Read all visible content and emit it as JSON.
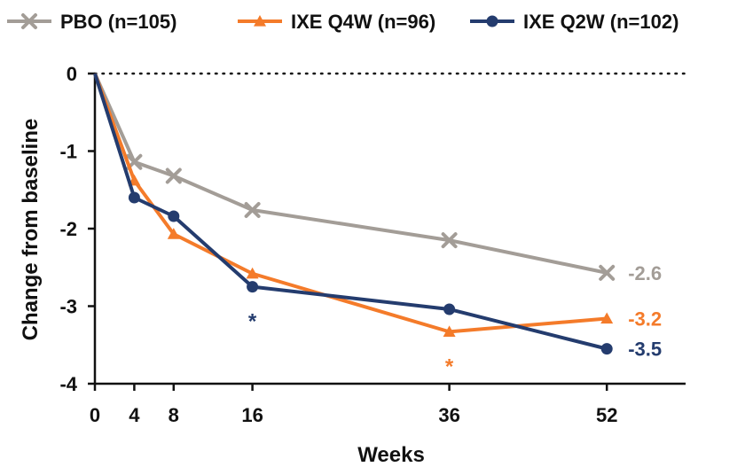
{
  "chart_data": {
    "type": "line",
    "xlabel": "Weeks",
    "ylabel": "Change from baseline",
    "x": [
      0,
      4,
      8,
      16,
      36,
      52
    ],
    "xticks": [
      "0",
      "4",
      "8",
      "16",
      "36",
      "52"
    ],
    "yticks": [
      "0",
      "-1",
      "-2",
      "-3",
      "-4"
    ],
    "xlim": [
      0,
      60
    ],
    "ylim": [
      -4,
      0
    ],
    "reference_line": 0,
    "legend_position": "top",
    "series": [
      {
        "name": "PBO (n=105)",
        "color": "#a39d97",
        "marker": "cross",
        "values": [
          0,
          -1.14,
          -1.32,
          -1.76,
          -2.15,
          -2.57
        ],
        "end_label": "-2.6",
        "significant_at": []
      },
      {
        "name": "IXE Q4W (n=96)",
        "color": "#f47b2a",
        "marker": "triangle",
        "values": [
          0,
          -1.38,
          -2.07,
          -2.58,
          -3.33,
          -3.16
        ],
        "end_label": "-3.2",
        "significant_at": [
          36
        ]
      },
      {
        "name": "IXE Q2W (n=102)",
        "color": "#243c6e",
        "marker": "circle",
        "values": [
          0,
          -1.6,
          -1.84,
          -2.75,
          -3.04,
          -3.55
        ],
        "end_label": "-3.5",
        "significant_at": [
          16
        ]
      }
    ],
    "significance_symbol": "*"
  }
}
